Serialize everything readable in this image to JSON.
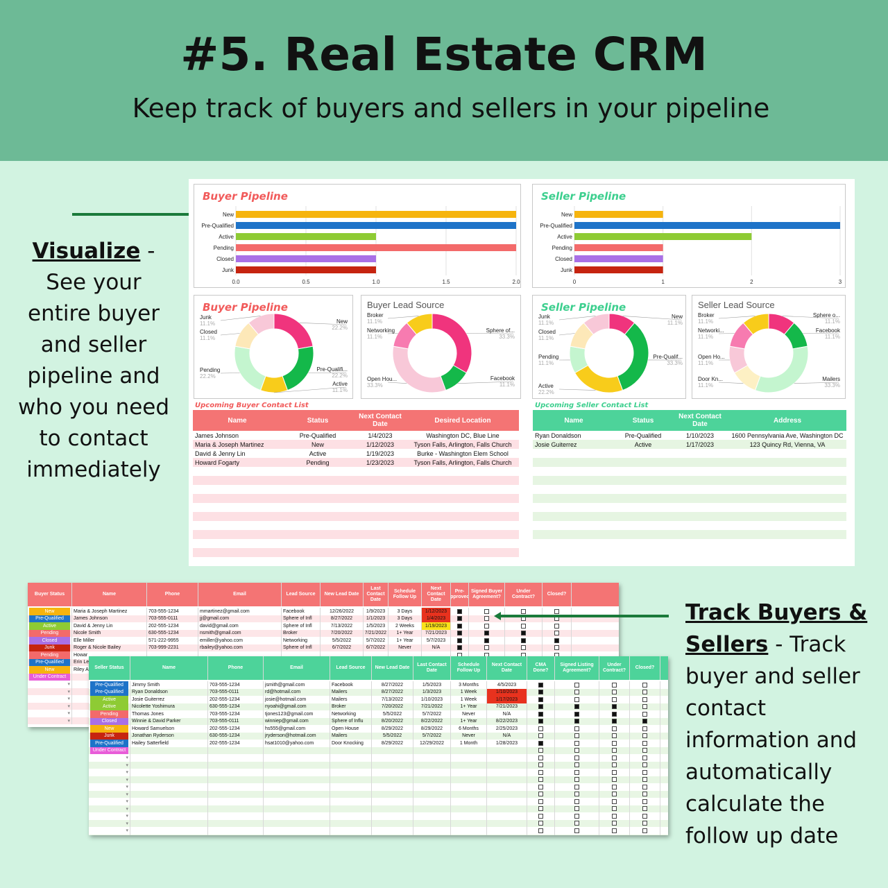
{
  "header": {
    "title": "#5. Real Estate CRM",
    "subtitle": "Keep track of  buyers and sellers in your pipeline"
  },
  "left_note": {
    "bold": "Visualize",
    "text": " - See your entire buyer and seller pipeline and who you need to contact immediately"
  },
  "right_note": {
    "bold": "Track Buyers & Sellers",
    "text": " - Track buyer and seller contact information and automatically calculate the follow up date"
  },
  "colors": {
    "header_bg": "#6dba96",
    "page_bg": "#d2f3e1",
    "buyer_accent": "#f26d6d",
    "seller_accent": "#4dd39a",
    "arrow": "#1a7a3a"
  },
  "chart_data": [
    {
      "type": "bar",
      "title": "Buyer Pipeline",
      "orientation": "horizontal",
      "categories": [
        "New",
        "Pre-Qualified",
        "Active",
        "Pending",
        "Closed",
        "Junk"
      ],
      "values": [
        2,
        2,
        1,
        2,
        1,
        1
      ],
      "colors": [
        "#f6b40e",
        "#1e73c8",
        "#8ecb34",
        "#f36a6a",
        "#a970e6",
        "#c62410"
      ],
      "xlim": [
        0,
        2
      ],
      "xticks": [
        "0.0",
        "0.5",
        "1.0",
        "1.5",
        "2.0"
      ],
      "grid": true
    },
    {
      "type": "bar",
      "title": "Seller Pipeline",
      "orientation": "horizontal",
      "categories": [
        "New",
        "Pre-Qualified",
        "Active",
        "Pending",
        "Closed",
        "Junk"
      ],
      "values": [
        1,
        3,
        2,
        1,
        1,
        1
      ],
      "colors": [
        "#f6b40e",
        "#1e73c8",
        "#8ecb34",
        "#f36a6a",
        "#a970e6",
        "#c62410"
      ],
      "xlim": [
        0,
        3
      ],
      "xticks": [
        "0",
        "1",
        "2",
        "3"
      ],
      "grid": true
    },
    {
      "type": "pie",
      "donut": true,
      "title": "Buyer Pipeline",
      "slices": [
        {
          "label": "New",
          "pct": "22.2%",
          "value": 22.2,
          "color": "#f0347d"
        },
        {
          "label": "Pre-Qualifi...",
          "pct": "22.2%",
          "value": 22.2,
          "color": "#14b84a"
        },
        {
          "label": "Active",
          "pct": "11.1%",
          "value": 11.1,
          "color": "#f8cc1b"
        },
        {
          "label": "Pending",
          "pct": "22.2%",
          "value": 22.2,
          "color": "#c4f5cf"
        },
        {
          "label": "Closed",
          "pct": "11.1%",
          "value": 11.1,
          "color": "#fde8b8"
        },
        {
          "label": "Junk",
          "pct": "11.1%",
          "value": 11.1,
          "color": "#f8c8d8"
        }
      ]
    },
    {
      "type": "pie",
      "donut": true,
      "title": "Buyer Lead Source",
      "slices": [
        {
          "label": "Sphere of...",
          "pct": "33.3%",
          "value": 33.3,
          "color": "#f0347d"
        },
        {
          "label": "Facebook",
          "pct": "11.1%",
          "value": 11.1,
          "color": "#14b84a"
        },
        {
          "label": "Open Hou...",
          "pct": "33.3%",
          "value": 33.3,
          "color": "#f8c8d8"
        },
        {
          "label": "Networking",
          "pct": "11.1%",
          "value": 11.1,
          "color": "#f77bb0"
        },
        {
          "label": "Broker",
          "pct": "11.1%",
          "value": 11.1,
          "color": "#f8cc1b"
        }
      ]
    },
    {
      "type": "pie",
      "donut": true,
      "title": "Seller Pipeline",
      "slices": [
        {
          "label": "New",
          "pct": "11.1%",
          "value": 11.1,
          "color": "#f0347d"
        },
        {
          "label": "Pre-Qualif...",
          "pct": "33.3%",
          "value": 33.3,
          "color": "#14b84a"
        },
        {
          "label": "Active",
          "pct": "22.2%",
          "value": 22.2,
          "color": "#f8cc1b"
        },
        {
          "label": "Pending",
          "pct": "11.1%",
          "value": 11.1,
          "color": "#c4f5cf"
        },
        {
          "label": "Closed",
          "pct": "11.1%",
          "value": 11.1,
          "color": "#fde8b8"
        },
        {
          "label": "Junk",
          "pct": "11.1%",
          "value": 11.1,
          "color": "#f8c8d8"
        }
      ]
    },
    {
      "type": "pie",
      "donut": true,
      "title": "Seller Lead Source",
      "slices": [
        {
          "label": "Sphere o...",
          "pct": "11.1%",
          "value": 11.1,
          "color": "#f0347d"
        },
        {
          "label": "Facebook",
          "pct": "11.1%",
          "value": 11.1,
          "color": "#14b84a"
        },
        {
          "label": "Mailers",
          "pct": "33.3%",
          "value": 33.3,
          "color": "#c4f5cf"
        },
        {
          "label": "Door Kn...",
          "pct": "11.1%",
          "value": 11.1,
          "color": "#fdf0c4"
        },
        {
          "label": "Open Ho...",
          "pct": "11.1%",
          "value": 11.1,
          "color": "#f8c8d8"
        },
        {
          "label": "Networki...",
          "pct": "11.1%",
          "value": 11.1,
          "color": "#f77bb0"
        },
        {
          "label": "Broker",
          "pct": "11.1%",
          "value": 11.1,
          "color": "#f8cc1b"
        }
      ]
    }
  ],
  "buyer_contacts": {
    "title": "Upcoming Buyer Contact List",
    "headers": [
      "Name",
      "Status",
      "Next Contact Date",
      "Desired Location"
    ],
    "rows": [
      [
        "James Johnson",
        "Pre-Qualified",
        "1/4/2023",
        "Washington DC, Blue Line"
      ],
      [
        "Maria & Joseph Martinez",
        "New",
        "1/12/2023",
        "Tyson Falls, Arlington, Falls Church"
      ],
      [
        "David & Jenny Lin",
        "Active",
        "1/19/2023",
        "Burke - Washington Elem School"
      ],
      [
        "Howard Fogarty",
        "Pending",
        "1/23/2023",
        "Tyson Falls, Arlington, Falls Church"
      ]
    ]
  },
  "seller_contacts": {
    "title": "Upcoming Seller Contact List",
    "headers": [
      "Name",
      "Status",
      "Next Contact Date",
      "Address"
    ],
    "rows": [
      [
        "Ryan Donaldson",
        "Pre-Qualified",
        "1/10/2023",
        "1600 Pennsylvania Ave, Washington DC"
      ],
      [
        "Josie Guiterrez",
        "Active",
        "1/17/2023",
        "123 Quincy Rd, Vienna, VA"
      ]
    ]
  },
  "status_colors": {
    "New": "#f6b40e",
    "Pre-Qualified": "#1e73c8",
    "Active": "#8ecb34",
    "Pending": "#f36a6a",
    "Closed": "#a970e6",
    "Junk": "#c62410",
    "Under Contract": "#e85cd8"
  },
  "buyer_sheet": {
    "headers": [
      "Buyer Status",
      "Name",
      "Phone",
      "Email",
      "Lead Source",
      "New Lead Date",
      "Last Contact Date",
      "Schedule Follow Up",
      "Next Contact Date",
      "Pre-Approved?",
      "Signed Buyer Agreement?",
      "Under Contract?",
      "Closed?"
    ],
    "rows": [
      [
        "New",
        "Maria & Joseph Martinez",
        "703-555-1234",
        "mmartinez@gmail.com",
        "Facebook",
        "12/26/2022",
        "1/9/2023",
        "3 Days",
        "1/12/2023",
        true,
        false,
        false,
        false
      ],
      [
        "Pre-Qualified",
        "James Johnson",
        "703-555-0111",
        "jj@gmail.com",
        "Sphere of Infl",
        "8/27/2022",
        "1/1/2023",
        "3 Days",
        "1/4/2023",
        true,
        false,
        false,
        false
      ],
      [
        "Active",
        "David & Jenny Lin",
        "202-555-1234",
        "david@gmail.com",
        "Sphere of Infl",
        "7/13/2022",
        "1/5/2023",
        "2 Weeks",
        "1/19/2023",
        true,
        false,
        false,
        false
      ],
      [
        "Pending",
        "Nicole Smith",
        "630-555-1234",
        "nsmith@gmail.com",
        "Broker",
        "7/20/2022",
        "7/21/2022",
        "1+ Year",
        "7/21/2023",
        true,
        true,
        true,
        false
      ],
      [
        "Closed",
        "Elle Miller",
        "571-222-9955",
        "emiller@yahoo.com",
        "Networking",
        "5/5/2022",
        "5/7/2022",
        "1+ Year",
        "5/7/2023",
        true,
        true,
        true,
        true
      ],
      [
        "Junk",
        "Roger & Nicole Bailey",
        "703-999-2231",
        "rbailey@yahoo.com",
        "Sphere of Infl",
        "6/7/2022",
        "6/7/2022",
        "Never",
        "N/A",
        true,
        false,
        false,
        false
      ],
      [
        "Pending",
        "Howar",
        "",
        "",
        "",
        "",
        "",
        "",
        "",
        false,
        false,
        false,
        false
      ],
      [
        "Pre-Qualified",
        "Erin Le",
        "",
        "",
        "",
        "",
        "",
        "",
        "",
        false,
        false,
        false,
        false
      ],
      [
        "New",
        "Riley A",
        "",
        "",
        "",
        "",
        "",
        "",
        "",
        false,
        false,
        false,
        false
      ],
      [
        "Under Contract",
        "",
        "",
        "",
        "",
        "",
        "",
        "",
        "",
        false,
        false,
        false,
        false
      ]
    ]
  },
  "seller_sheet": {
    "headers": [
      "Seller Status",
      "Name",
      "Phone",
      "Email",
      "Lead Source",
      "New Lead Date",
      "Last Contact Date",
      "Schedule Follow Up",
      "Next Contact Date",
      "CMA Done?",
      "Signed Listing Agreement?",
      "Under Contract?",
      "Closed?"
    ],
    "rows": [
      [
        "Pre-Qualified",
        "Jimmy Smith",
        "703-555-1234",
        "jsmith@gmail.com",
        "Facebook",
        "8/27/2022",
        "1/5/2023",
        "3 Months",
        "4/5/2023",
        true,
        false,
        false,
        false
      ],
      [
        "Pre-Qualified",
        "Ryan Donaldson",
        "703-555-0111",
        "rd@hotmail.com",
        "Mailers",
        "8/27/2022",
        "1/3/2023",
        "1 Week",
        "1/10/2023",
        true,
        false,
        false,
        false
      ],
      [
        "Active",
        "Josie Guiterrez",
        "202-555-1234",
        "josie@hotmail.com",
        "Mailers",
        "7/13/2022",
        "1/10/2023",
        "1 Week",
        "1/17/2023",
        true,
        false,
        false,
        false
      ],
      [
        "Active",
        "Nicolette Yoshimura",
        "630-555-1234",
        "nyoahi@gmail.com",
        "Broker",
        "7/20/2022",
        "7/21/2022",
        "1+ Year",
        "7/21/2023",
        true,
        true,
        true,
        false
      ],
      [
        "Pending",
        "Thomas Jones",
        "703-555-1234",
        "tjones123@gmail.com",
        "Networking",
        "5/5/2022",
        "5/7/2022",
        "Never",
        "N/A",
        true,
        true,
        true,
        false
      ],
      [
        "Closed",
        "Winnie & David Parker",
        "703-555-0111",
        "winniep@gmail.com",
        "Sphere of Influ",
        "8/20/2022",
        "8/22/2022",
        "1+ Year",
        "8/22/2023",
        true,
        true,
        true,
        true
      ],
      [
        "New",
        "Howard Samuelson",
        "202-555-1234",
        "hs555@gmail.com",
        "Open House",
        "8/29/2022",
        "8/29/2022",
        "6 Months",
        "2/25/2023",
        false,
        false,
        false,
        false
      ],
      [
        "Junk",
        "Jonathan Ryderson",
        "630-555-1234",
        "jryderson@hotmail.com",
        "Mailers",
        "5/5/2022",
        "5/7/2022",
        "Never",
        "N/A",
        false,
        false,
        false,
        false
      ],
      [
        "Pre-Qualified",
        "Hailey Satterfield",
        "202-555-1234",
        "hsat1010@yahoo.com",
        "Door Knocking",
        "8/29/2022",
        "12/29/2022",
        "1 Month",
        "1/28/2023",
        true,
        false,
        false,
        false
      ],
      [
        "Under Contract",
        "",
        "",
        "",
        "",
        "",
        "",
        "",
        "",
        false,
        false,
        false,
        false
      ]
    ]
  }
}
